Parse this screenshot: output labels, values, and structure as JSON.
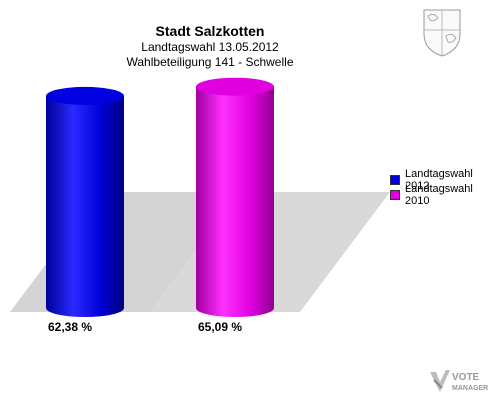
{
  "header": {
    "title": "Stadt Salzkotten",
    "subtitle": "Landtagswahl 13.05.2012",
    "subtitle2": "Wahlbeteiligung 141 - Schwelle"
  },
  "chart_data": {
    "type": "bar",
    "categories": [
      "Landtagswahl 2012",
      "Landtagswahl 2010"
    ],
    "values": [
      62.38,
      65.09
    ],
    "value_labels": [
      "62,38 %",
      "65,09 %"
    ],
    "colors": [
      "#0000e0",
      "#e000e0"
    ],
    "ylim": [
      0,
      100
    ],
    "legend": {
      "placement": "right",
      "items": [
        {
          "name": "Landtagswahl 2012",
          "color": "#0000e0"
        },
        {
          "name": "Landtagswahl 2010",
          "color": "#e000e0"
        }
      ]
    }
  },
  "branding": {
    "logo_text": "VOTE MANAGER"
  }
}
